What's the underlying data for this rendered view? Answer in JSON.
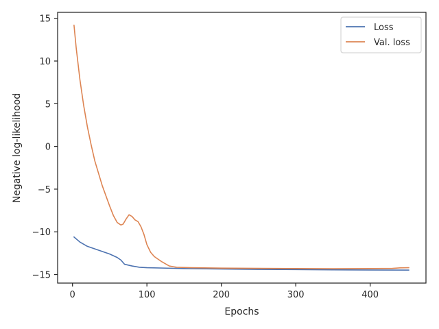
{
  "chart_data": {
    "type": "line",
    "xlabel": "Epochs",
    "ylabel": "Negative log-likelihood",
    "xlim": [
      -20,
      475
    ],
    "ylim": [
      -16,
      15.7
    ],
    "xticks": [
      0,
      100,
      200,
      300,
      400
    ],
    "yticks": [
      -15,
      -10,
      -5,
      0,
      5,
      10,
      15
    ],
    "legend_position": "top-right",
    "series": [
      {
        "name": "Loss",
        "color": "#4c72b0",
        "points": [
          [
            2,
            -10.6
          ],
          [
            10,
            -11.2
          ],
          [
            20,
            -11.7
          ],
          [
            30,
            -12.0
          ],
          [
            40,
            -12.3
          ],
          [
            50,
            -12.6
          ],
          [
            60,
            -13.0
          ],
          [
            65,
            -13.3
          ],
          [
            70,
            -13.8
          ],
          [
            80,
            -14.0
          ],
          [
            90,
            -14.15
          ],
          [
            100,
            -14.2
          ],
          [
            150,
            -14.3
          ],
          [
            200,
            -14.35
          ],
          [
            250,
            -14.4
          ],
          [
            300,
            -14.42
          ],
          [
            350,
            -14.45
          ],
          [
            400,
            -14.47
          ],
          [
            452,
            -14.48
          ]
        ]
      },
      {
        "name": "Val. loss",
        "color": "#dd8452",
        "points": [
          [
            2,
            14.2
          ],
          [
            5,
            11.5
          ],
          [
            10,
            7.8
          ],
          [
            15,
            4.8
          ],
          [
            20,
            2.3
          ],
          [
            25,
            0.2
          ],
          [
            30,
            -1.7
          ],
          [
            40,
            -4.6
          ],
          [
            50,
            -7.0
          ],
          [
            55,
            -8.1
          ],
          [
            60,
            -8.9
          ],
          [
            65,
            -9.2
          ],
          [
            68,
            -9.1
          ],
          [
            72,
            -8.5
          ],
          [
            76,
            -8.0
          ],
          [
            80,
            -8.2
          ],
          [
            84,
            -8.6
          ],
          [
            88,
            -8.8
          ],
          [
            92,
            -9.4
          ],
          [
            96,
            -10.3
          ],
          [
            100,
            -11.5
          ],
          [
            105,
            -12.4
          ],
          [
            110,
            -12.9
          ],
          [
            120,
            -13.5
          ],
          [
            130,
            -14.0
          ],
          [
            140,
            -14.15
          ],
          [
            160,
            -14.2
          ],
          [
            200,
            -14.25
          ],
          [
            300,
            -14.3
          ],
          [
            350,
            -14.32
          ],
          [
            400,
            -14.3
          ],
          [
            430,
            -14.28
          ],
          [
            440,
            -14.22
          ],
          [
            452,
            -14.2
          ]
        ]
      }
    ]
  }
}
